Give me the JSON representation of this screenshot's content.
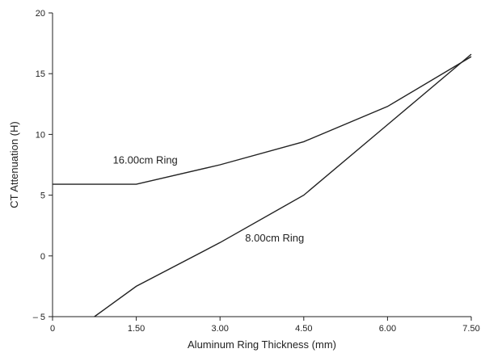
{
  "chart_data": {
    "type": "line",
    "xlabel": "Aluminum Ring Thickness (mm)",
    "ylabel": "CT Attenuation (H)",
    "xlim": [
      0,
      7.5
    ],
    "ylim": [
      -5,
      20
    ],
    "x_ticks": [
      0,
      1.5,
      3.0,
      4.5,
      6.0,
      7.5
    ],
    "x_tick_labels": [
      "0",
      "1.50",
      "3.00",
      "4.50",
      "6.00",
      "7.50"
    ],
    "y_ticks": [
      -5,
      0,
      5,
      10,
      15,
      20
    ],
    "y_tick_labels": [
      "– 5",
      "0",
      "5",
      "10",
      "15",
      "20"
    ],
    "grid": false,
    "series": [
      {
        "name": "16.00cm Ring",
        "label_at": [
          1.08,
          7.6
        ],
        "points": [
          [
            0,
            5.9
          ],
          [
            1.5,
            5.9
          ],
          [
            3.0,
            7.5
          ],
          [
            4.5,
            9.4
          ],
          [
            6.0,
            12.3
          ],
          [
            7.5,
            16.4
          ]
        ]
      },
      {
        "name": "8.00cm Ring",
        "label_at": [
          3.45,
          1.2
        ],
        "points": [
          [
            0.75,
            -5
          ],
          [
            1.5,
            -2.5
          ],
          [
            3.0,
            1.1
          ],
          [
            4.5,
            5.0
          ],
          [
            6.0,
            10.8
          ],
          [
            7.5,
            16.6
          ]
        ]
      }
    ]
  }
}
